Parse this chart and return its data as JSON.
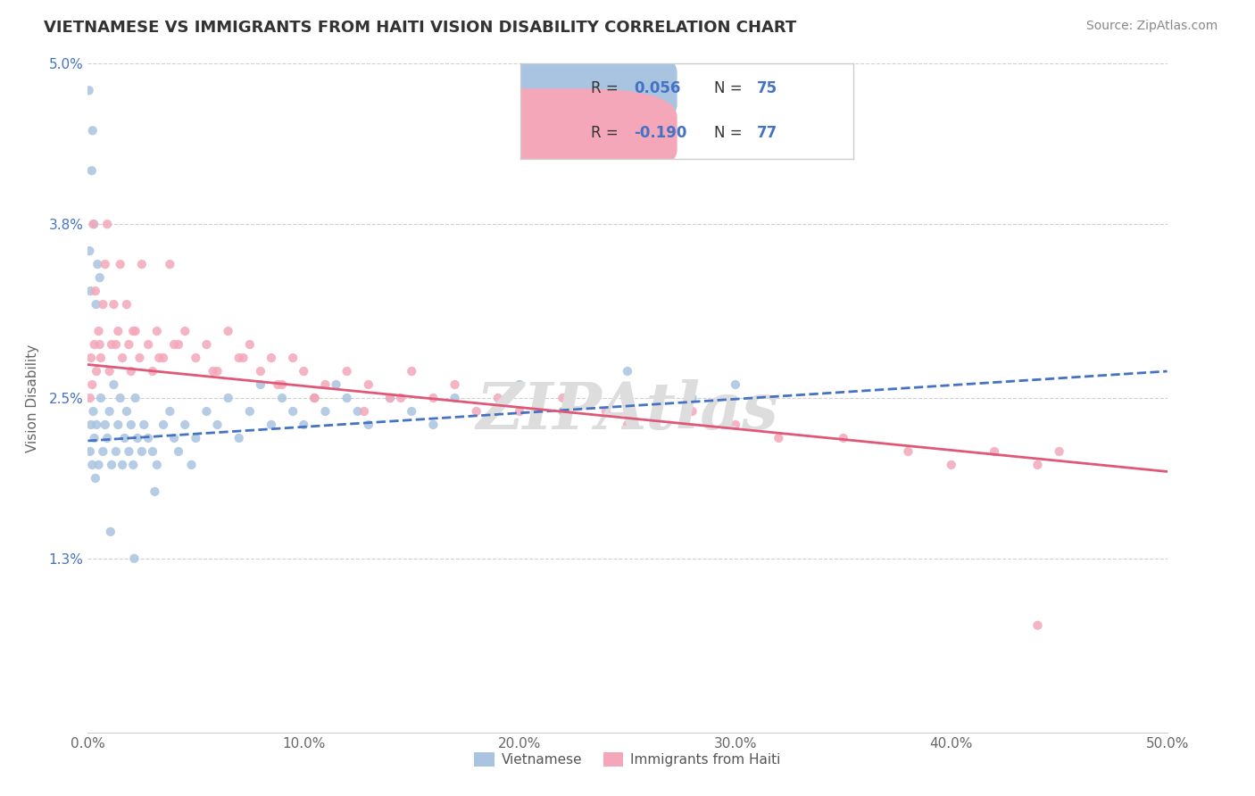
{
  "title": "VIETNAMESE VS IMMIGRANTS FROM HAITI VISION DISABILITY CORRELATION CHART",
  "source": "Source: ZipAtlas.com",
  "ylabel": "Vision Disability",
  "xlim": [
    0.0,
    50.0
  ],
  "ylim": [
    0.0,
    5.0
  ],
  "xticklabels": [
    "0.0%",
    "10.0%",
    "20.0%",
    "30.0%",
    "40.0%",
    "50.0%"
  ],
  "xtick_vals": [
    0.0,
    10.0,
    20.0,
    30.0,
    40.0,
    50.0
  ],
  "ytick_vals": [
    0.0,
    1.3,
    2.5,
    3.8,
    5.0
  ],
  "yticklabels": [
    "",
    "1.3%",
    "2.5%",
    "3.8%",
    "5.0%"
  ],
  "viet_color": "#a8c4e0",
  "haiti_color": "#f4a7b9",
  "viet_line_color": "#4472c4",
  "haiti_line_color": "#e05878",
  "R_viet": "0.056",
  "N_viet": "75",
  "R_haiti": "-0.190",
  "N_haiti": "77",
  "legend_viet": "Vietnamese",
  "legend_haiti": "Immigrants from Haiti",
  "watermark": "ZIPAtlas",
  "viet_x": [
    0.1,
    0.15,
    0.2,
    0.25,
    0.3,
    0.35,
    0.4,
    0.5,
    0.6,
    0.7,
    0.8,
    0.9,
    1.0,
    1.1,
    1.2,
    1.3,
    1.4,
    1.5,
    1.6,
    1.7,
    1.8,
    1.9,
    2.0,
    2.1,
    2.2,
    2.3,
    2.5,
    2.6,
    2.8,
    3.0,
    3.2,
    3.5,
    3.8,
    4.0,
    4.2,
    4.5,
    4.8,
    5.0,
    5.5,
    6.0,
    6.5,
    7.0,
    7.5,
    8.0,
    8.5,
    9.0,
    9.5,
    10.0,
    10.5,
    11.0,
    11.5,
    12.0,
    12.5,
    13.0,
    14.0,
    15.0,
    16.0,
    17.0,
    20.0,
    22.0,
    25.0,
    28.0,
    30.0,
    0.05,
    0.08,
    0.12,
    0.18,
    0.22,
    0.28,
    0.38,
    0.45,
    0.55,
    1.05,
    2.15,
    3.1
  ],
  "viet_y": [
    2.1,
    2.3,
    2.0,
    2.4,
    2.2,
    1.9,
    2.3,
    2.0,
    2.5,
    2.1,
    2.3,
    2.2,
    2.4,
    2.0,
    2.6,
    2.1,
    2.3,
    2.5,
    2.0,
    2.2,
    2.4,
    2.1,
    2.3,
    2.0,
    2.5,
    2.2,
    2.1,
    2.3,
    2.2,
    2.1,
    2.0,
    2.3,
    2.4,
    2.2,
    2.1,
    2.3,
    2.0,
    2.2,
    2.4,
    2.3,
    2.5,
    2.2,
    2.4,
    2.6,
    2.3,
    2.5,
    2.4,
    2.3,
    2.5,
    2.4,
    2.6,
    2.5,
    2.4,
    2.3,
    2.5,
    2.4,
    2.3,
    2.5,
    2.6,
    2.4,
    2.7,
    2.5,
    2.6,
    4.8,
    3.6,
    3.3,
    4.2,
    4.5,
    3.8,
    3.2,
    3.5,
    3.4,
    1.5,
    1.3,
    1.8
  ],
  "haiti_x": [
    0.1,
    0.15,
    0.2,
    0.3,
    0.4,
    0.5,
    0.6,
    0.8,
    0.9,
    1.0,
    1.1,
    1.2,
    1.4,
    1.5,
    1.6,
    1.8,
    1.9,
    2.0,
    2.2,
    2.4,
    2.5,
    2.8,
    3.0,
    3.2,
    3.5,
    3.8,
    4.0,
    4.5,
    5.0,
    5.5,
    6.0,
    6.5,
    7.0,
    7.5,
    8.0,
    8.5,
    9.0,
    9.5,
    10.0,
    10.5,
    11.0,
    12.0,
    13.0,
    14.0,
    15.0,
    16.0,
    17.0,
    18.0,
    19.0,
    20.0,
    22.0,
    24.0,
    25.0,
    28.0,
    30.0,
    32.0,
    35.0,
    38.0,
    40.0,
    42.0,
    44.0,
    45.0,
    0.25,
    0.35,
    0.55,
    0.7,
    1.3,
    2.1,
    3.3,
    4.2,
    5.8,
    7.2,
    8.8,
    10.5,
    12.8,
    14.5,
    44.0
  ],
  "haiti_y": [
    2.5,
    2.8,
    2.6,
    2.9,
    2.7,
    3.0,
    2.8,
    3.5,
    3.8,
    2.7,
    2.9,
    3.2,
    3.0,
    3.5,
    2.8,
    3.2,
    2.9,
    2.7,
    3.0,
    2.8,
    3.5,
    2.9,
    2.7,
    3.0,
    2.8,
    3.5,
    2.9,
    3.0,
    2.8,
    2.9,
    2.7,
    3.0,
    2.8,
    2.9,
    2.7,
    2.8,
    2.6,
    2.8,
    2.7,
    2.5,
    2.6,
    2.7,
    2.6,
    2.5,
    2.7,
    2.5,
    2.6,
    2.4,
    2.5,
    2.4,
    2.5,
    2.4,
    2.3,
    2.4,
    2.3,
    2.2,
    2.2,
    2.1,
    2.0,
    2.1,
    2.0,
    2.1,
    3.8,
    3.3,
    2.9,
    3.2,
    2.9,
    3.0,
    2.8,
    2.9,
    2.7,
    2.8,
    2.6,
    2.5,
    2.4,
    2.5,
    0.8
  ],
  "viet_reg_x0": 0.0,
  "viet_reg_x1": 50.0,
  "viet_reg_y0": 2.18,
  "viet_reg_y1": 2.7,
  "haiti_reg_x0": 0.0,
  "haiti_reg_x1": 50.0,
  "haiti_reg_y0": 2.75,
  "haiti_reg_y1": 1.95
}
